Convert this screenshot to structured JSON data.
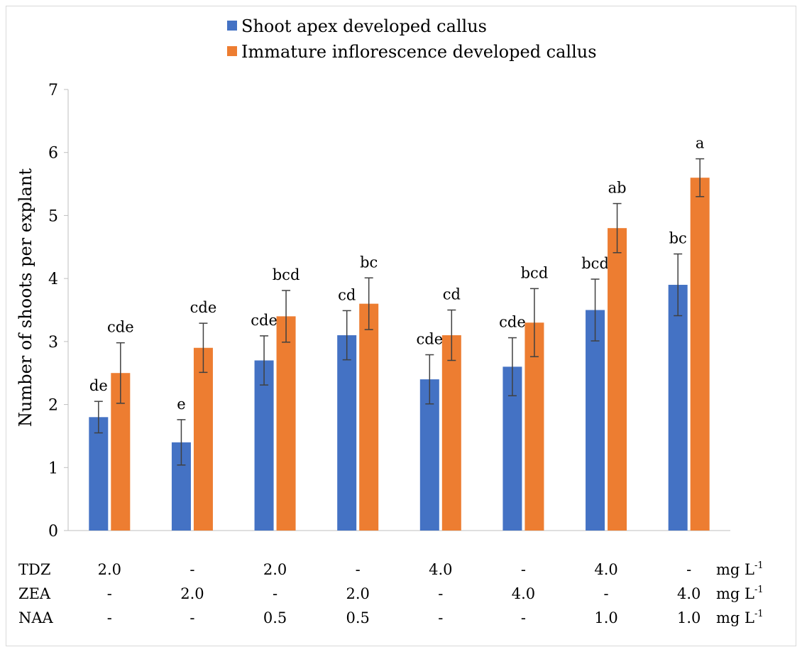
{
  "chart_data": {
    "type": "bar",
    "ylabel": "Number of shoots per explant",
    "ylim": [
      0,
      7
    ],
    "yticks": [
      "0",
      "1",
      "2",
      "3",
      "4",
      "5",
      "6",
      "7"
    ],
    "grid": false,
    "legend_position": "top",
    "series": [
      {
        "name": "Shoot apex developed callus",
        "color": "#4472c4",
        "values": [
          1.8,
          1.4,
          2.7,
          3.1,
          2.4,
          2.6,
          3.5,
          3.9
        ],
        "errors": [
          0.25,
          0.36,
          0.39,
          0.39,
          0.39,
          0.46,
          0.49,
          0.49
        ],
        "labels": [
          "de",
          "e",
          "cde",
          "cd",
          "cde",
          "cde",
          "bcd",
          "bc"
        ]
      },
      {
        "name": "Immature inflorescence developed callus",
        "color": "#ed7d31",
        "values": [
          2.5,
          2.9,
          3.4,
          3.6,
          3.1,
          3.3,
          4.8,
          5.6
        ],
        "errors": [
          0.48,
          0.39,
          0.41,
          0.41,
          0.4,
          0.54,
          0.39,
          0.3
        ],
        "labels": [
          "cde",
          "cde",
          "bcd",
          "bc",
          "cd",
          "bcd",
          "ab",
          "a"
        ]
      }
    ],
    "treatment_rows": [
      {
        "name": "TDZ",
        "values": [
          "2.0",
          "-",
          "2.0",
          "-",
          "4.0",
          "-",
          "4.0",
          "-"
        ],
        "unit": "mg L",
        "unit_sup": "-1"
      },
      {
        "name": "ZEA",
        "values": [
          "-",
          "2.0",
          "-",
          "2.0",
          "-",
          "4.0",
          "-",
          "4.0"
        ],
        "unit": "mg L",
        "unit_sup": "-1"
      },
      {
        "name": "NAA",
        "values": [
          "-",
          "-",
          "0.5",
          "0.5",
          "-",
          "-",
          "1.0",
          "1.0"
        ],
        "unit": "mg L",
        "unit_sup": "-1"
      }
    ]
  }
}
